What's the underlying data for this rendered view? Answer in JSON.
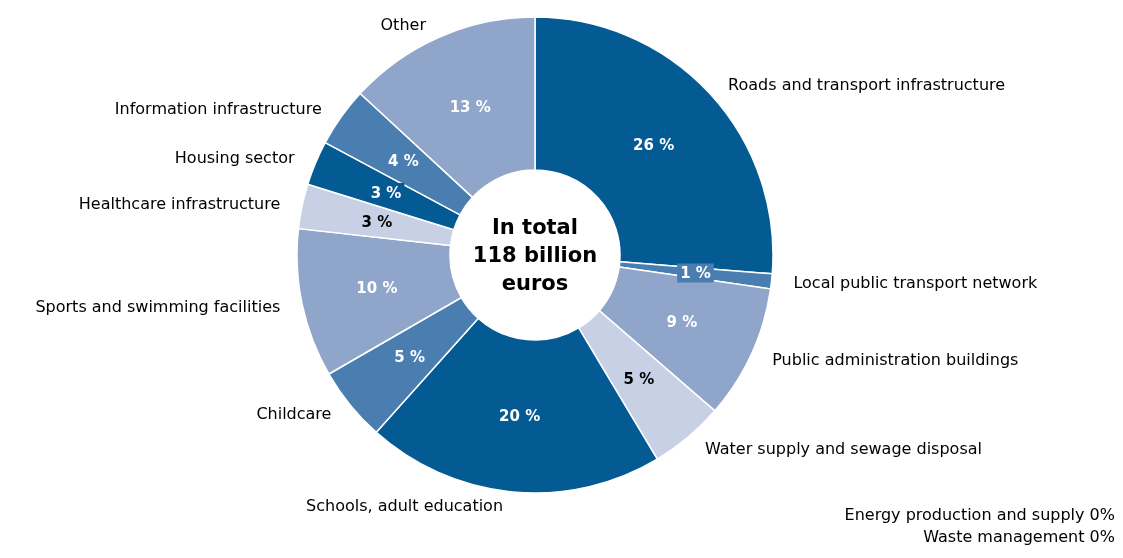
{
  "chart_data": {
    "type": "donut",
    "title": "In total\n118 billion\neuros",
    "categories": [
      "Roads and transport infrastructure",
      "Local public transport network",
      "Public administration buildings",
      "Water supply and sewage disposal",
      "Schools, adult education",
      "Childcare",
      "Sports and swimming facilities",
      "Healthcare infrastructure",
      "Housing sector",
      "Information infrastructure",
      "Other"
    ],
    "values": [
      26,
      1,
      9,
      5,
      20,
      5,
      10,
      3,
      3,
      4,
      13
    ],
    "value_labels": [
      "26 %",
      "1 %",
      "9 %",
      "5 %",
      "20 %",
      "5 %",
      "10 %",
      "3 %",
      "3 %",
      "4 %",
      "13 %"
    ],
    "colors": [
      "#045a93",
      "#4a7eb0",
      "#8fa5c9",
      "#c7d0e5",
      "#045a93",
      "#4a7eb0",
      "#8fa5c9",
      "#c7d0e5",
      "#045a93",
      "#4a7eb0",
      "#8fa5c9"
    ],
    "annotations": [
      "Energy production and supply 0%",
      "Waste management 0%"
    ]
  }
}
